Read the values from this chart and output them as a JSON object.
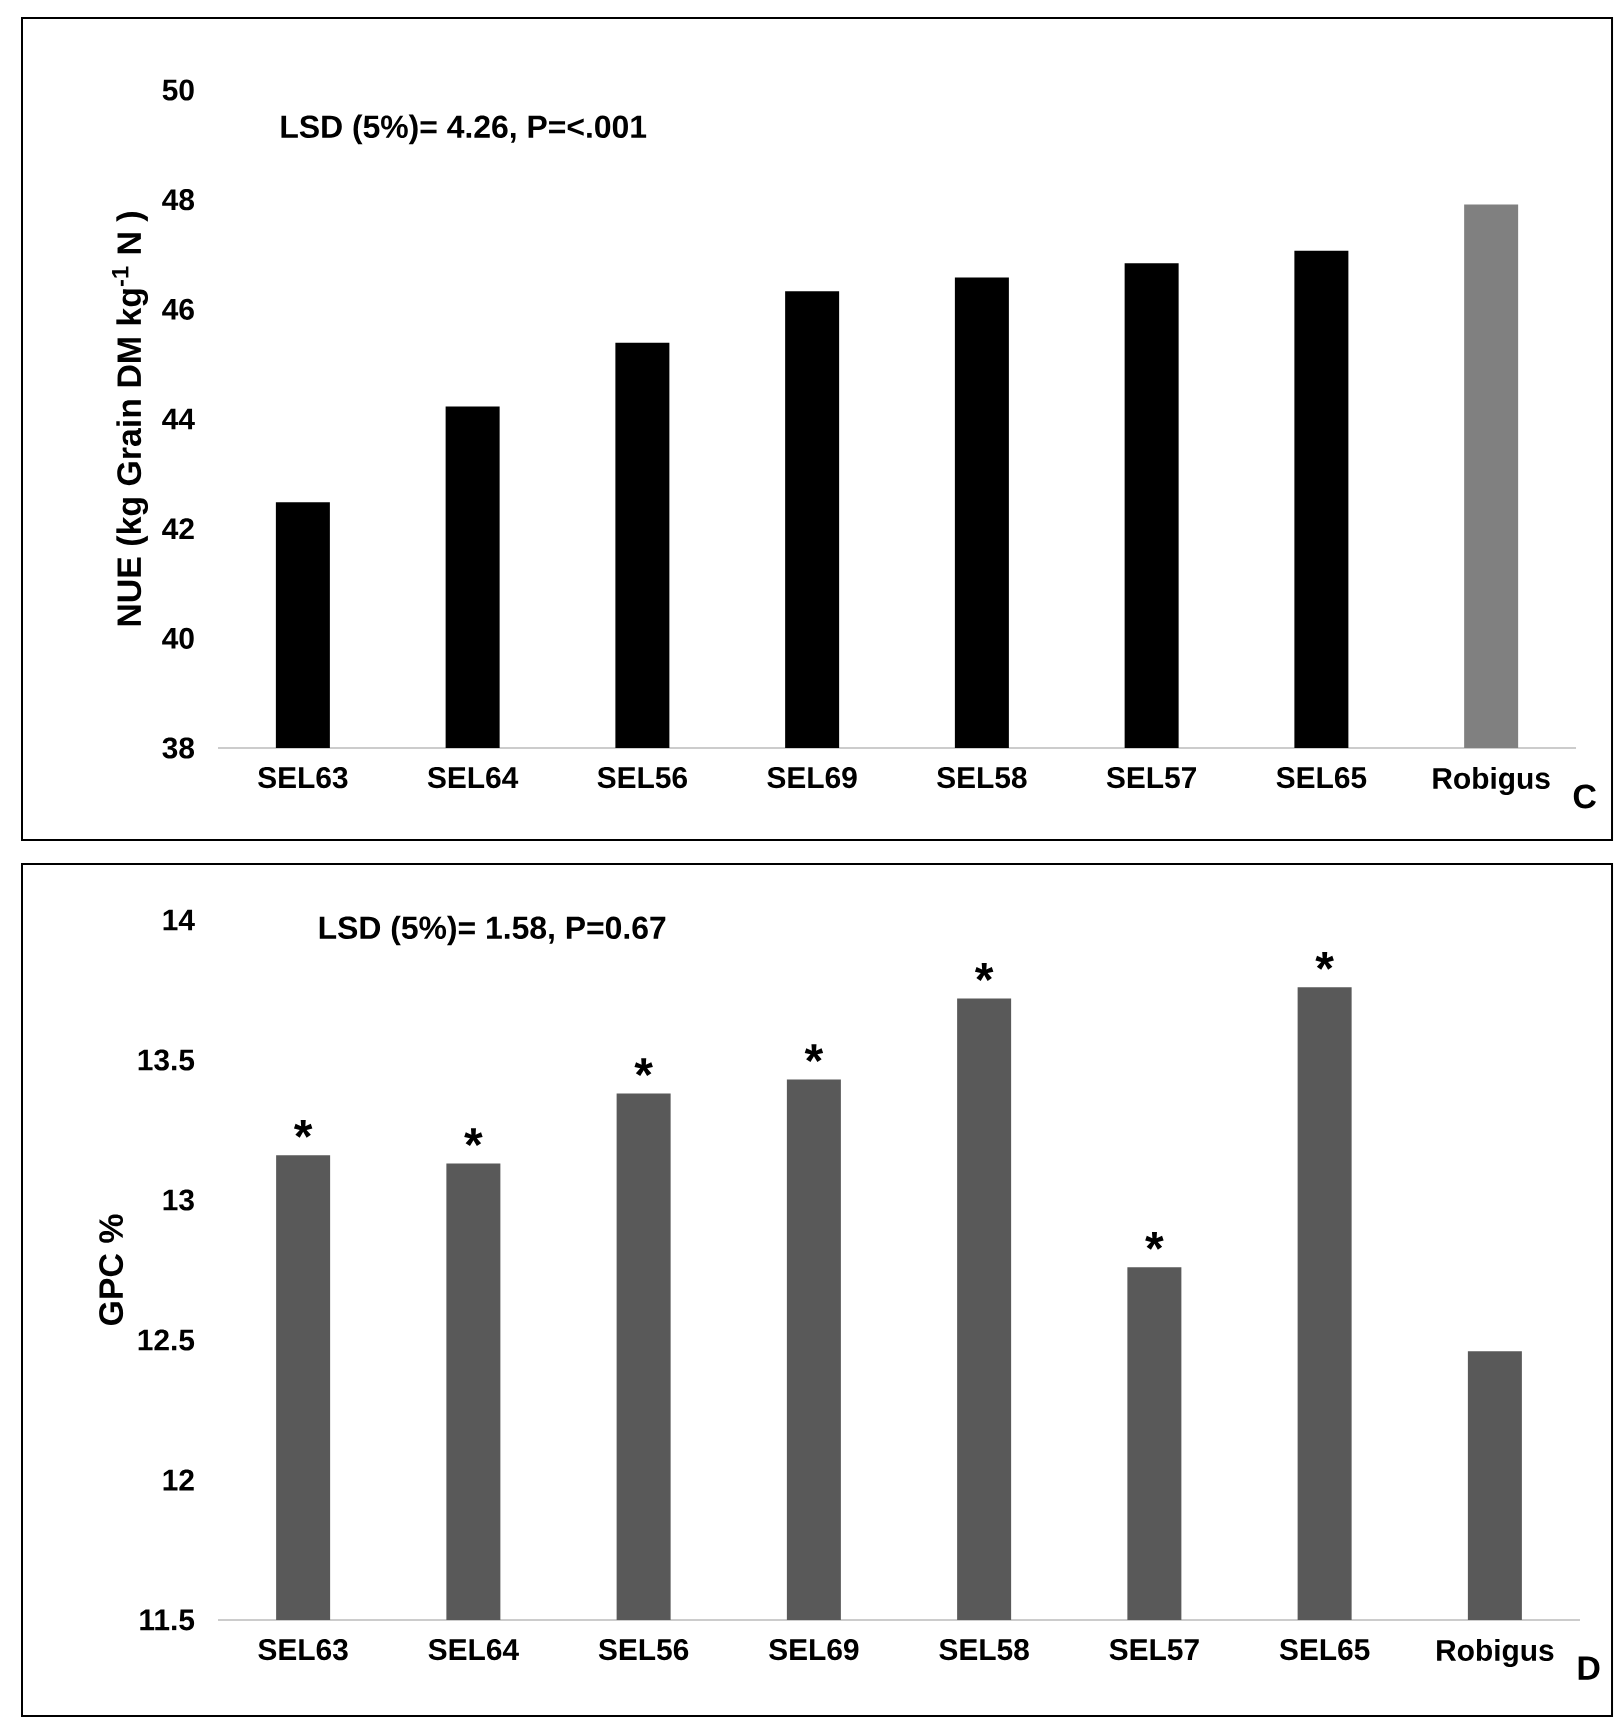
{
  "chart_data": [
    {
      "type": "bar",
      "ylabel": "NUE (kg Grain DM kg$^{-1}$ N )",
      "categories": [
        "SEL63",
        "SEL64",
        "SEL56",
        "SEL69",
        "SEL58",
        "SEL57",
        "SEL65",
        "Robigus"
      ],
      "values": [
        42.48,
        44.23,
        45.39,
        46.33,
        46.58,
        46.84,
        47.07,
        47.91
      ],
      "colors": [
        "#000000",
        "#000000",
        "#000000",
        "#000000",
        "#000000",
        "#000000",
        "#000000",
        "#808080"
      ],
      "ylim": [
        38,
        50
      ],
      "yticks": [
        38,
        40,
        42,
        44,
        46,
        48,
        50
      ],
      "annotations": [
        "LSD (5%)= 4.26, P=<.001",
        "C"
      ]
    },
    {
      "type": "bar",
      "ylabel": "GPC %",
      "categories": [
        "SEL63",
        "SEL64",
        "SEL56",
        "SEL69",
        "SEL58",
        "SEL57",
        "SEL65",
        "Robigus"
      ],
      "values": [
        13.16,
        13.13,
        13.38,
        13.43,
        13.72,
        12.76,
        13.76,
        12.46
      ],
      "colors": [
        "#595959",
        "#595959",
        "#595959",
        "#595959",
        "#595959",
        "#595959",
        "#595959",
        "#595959"
      ],
      "ylim": [
        11.5,
        14
      ],
      "yticks": [
        11.5,
        12,
        12.5,
        13,
        13.5,
        14
      ],
      "annotations": [
        "LSD (5%)= 1.58, P=0.67",
        "D",
        {
          "text": "*",
          "x": "SEL63",
          "y": 13.16
        },
        {
          "text": "*",
          "x": "SEL64",
          "y": 13.13
        },
        {
          "text": "*",
          "x": "SEL56",
          "y": 13.38
        },
        {
          "text": "*",
          "x": "SEL69",
          "y": 13.43
        },
        {
          "text": "*",
          "x": "SEL58",
          "y": 13.72
        },
        {
          "text": "*",
          "x": "SEL57",
          "y": 12.76
        },
        {
          "text": "*",
          "x": "SEL65",
          "y": 13.76
        }
      ]
    }
  ]
}
